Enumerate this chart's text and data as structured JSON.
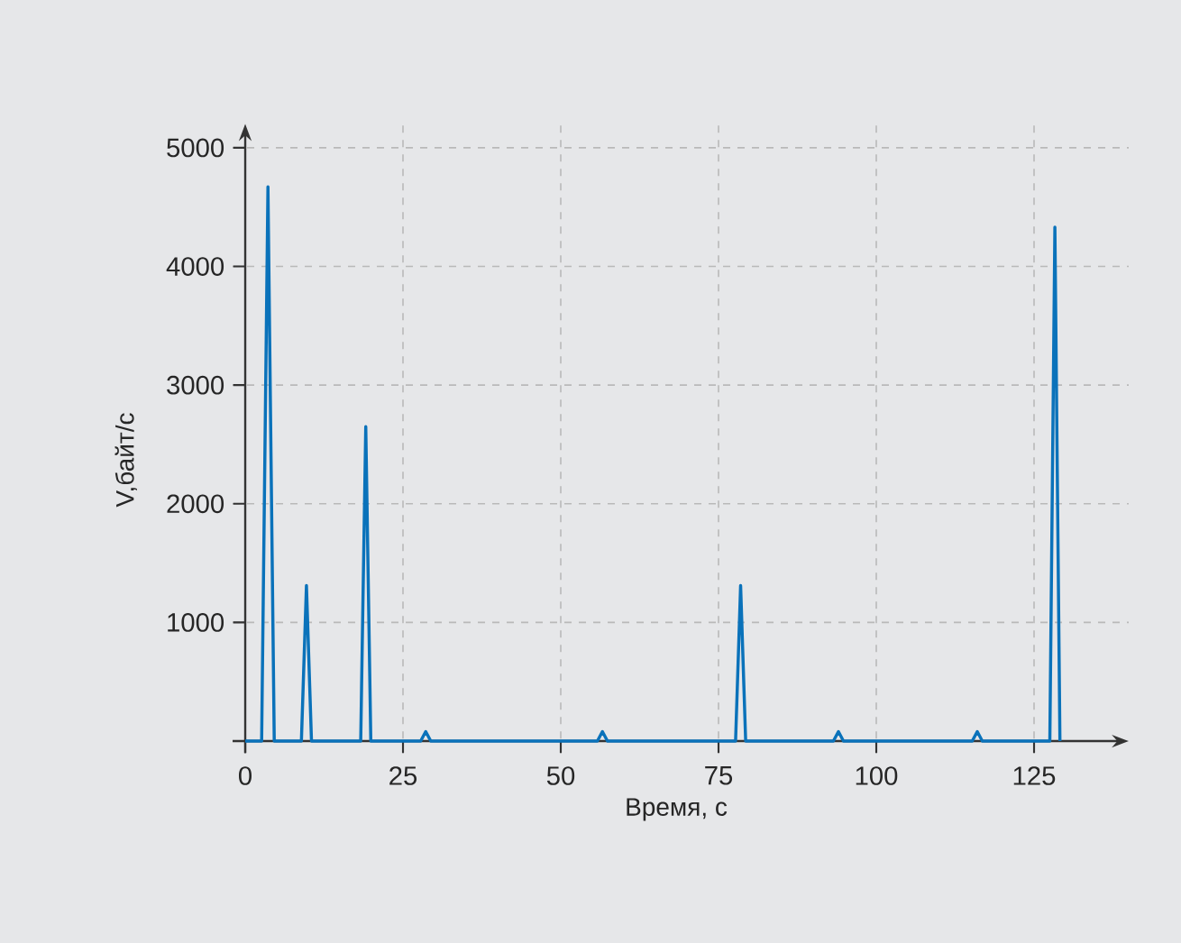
{
  "chart_data": {
    "type": "line",
    "xlabel": "Время, с",
    "ylabel": "V,байт/с",
    "xlim": [
      -2,
      140
    ],
    "ylim": [
      -100,
      5200
    ],
    "xticks": [
      0,
      25,
      50,
      75,
      100,
      125
    ],
    "yticks": [
      1000,
      2000,
      3000,
      4000,
      5000
    ],
    "grid": true,
    "series": [
      {
        "color": "#0a72ba",
        "x": [
          0,
          2.6,
          3.6,
          4.6,
          8.9,
          9.7,
          10.5,
          18.3,
          19.1,
          19.9,
          27.8,
          28.6,
          29.4,
          55.8,
          56.6,
          57.4,
          77.7,
          78.5,
          79.3,
          93.2,
          94,
          94.8,
          115.2,
          116,
          116.8,
          127.5,
          128.3,
          129.1
        ],
        "values": [
          0,
          0,
          4670,
          0,
          0,
          1310,
          0,
          0,
          2650,
          0,
          0,
          80,
          0,
          0,
          80,
          0,
          0,
          1310,
          0,
          0,
          80,
          0,
          0,
          80,
          0,
          0,
          4330,
          0
        ]
      }
    ]
  }
}
